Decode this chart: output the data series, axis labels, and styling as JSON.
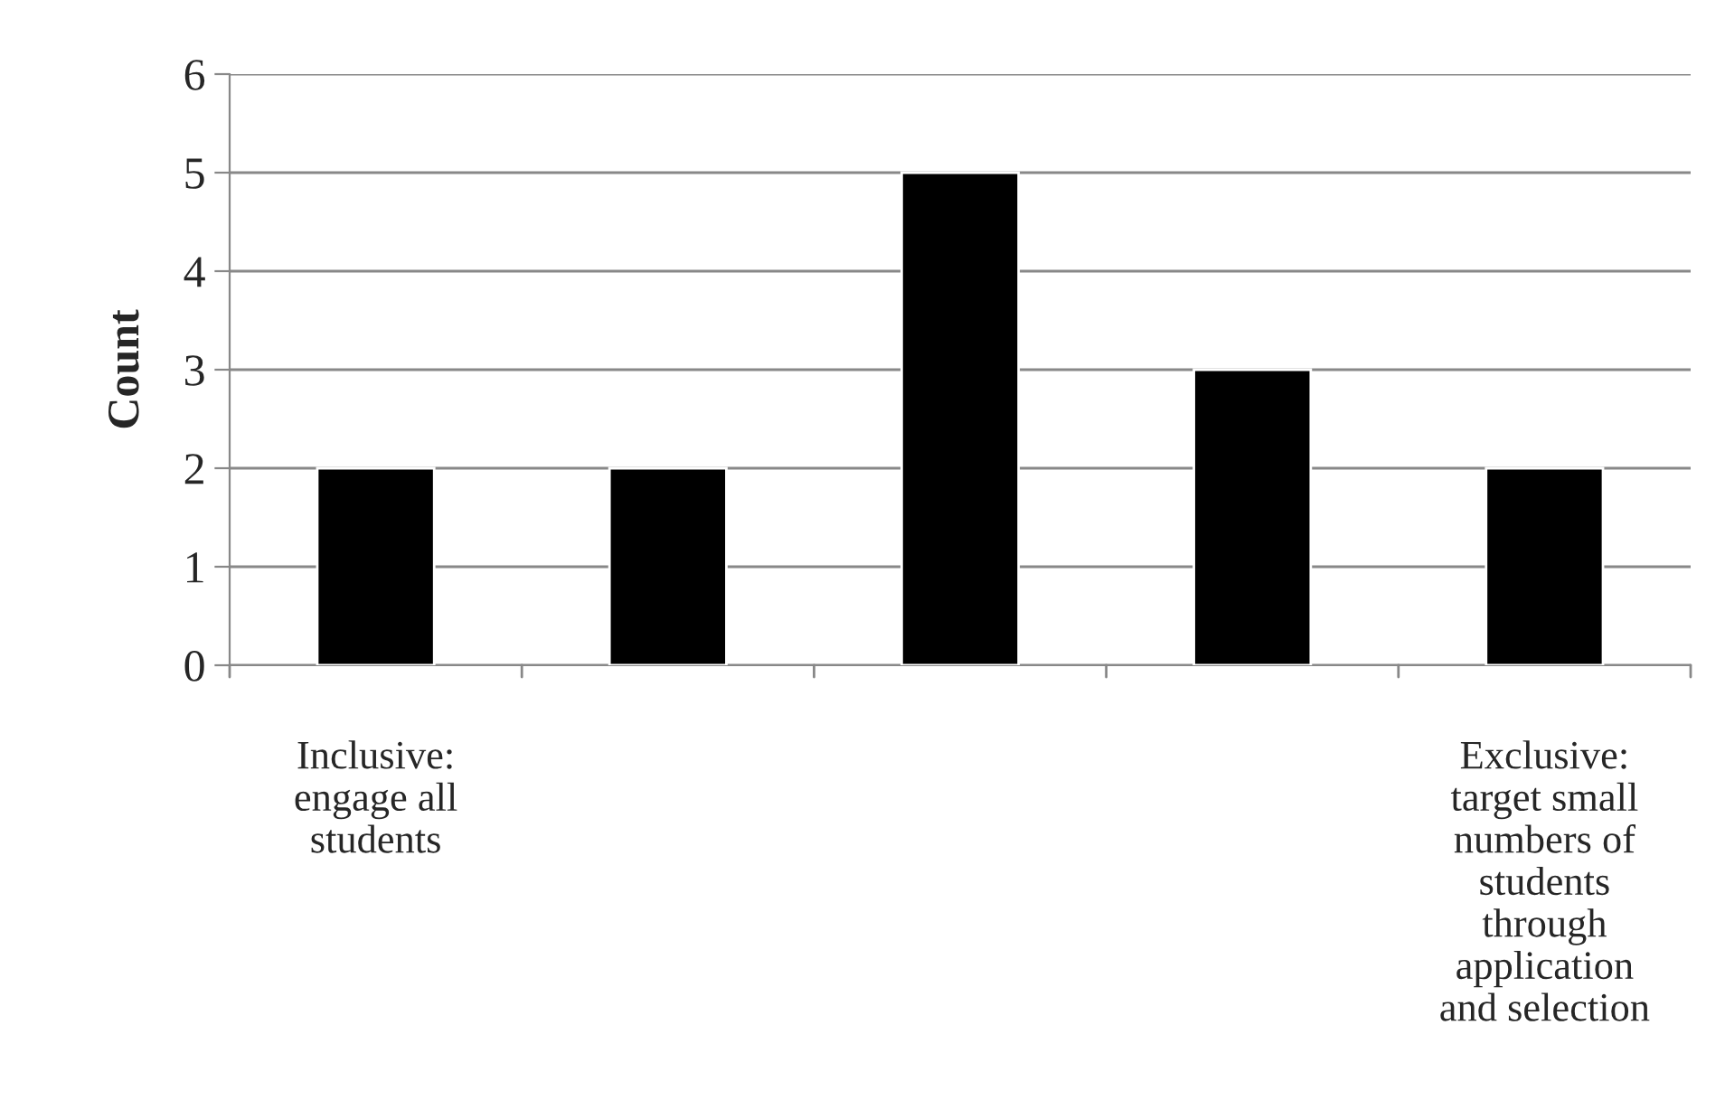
{
  "chart_data": {
    "type": "bar",
    "ylabel": "Count",
    "categories": [
      "Inclusive:\nengage all\nstudents",
      null,
      null,
      null,
      "Exclusive:\ntarget small\nnumbers of\nstudents\nthrough\napplication\nand selection"
    ],
    "values": [
      2,
      2,
      5,
      3,
      2
    ],
    "color": "#000000",
    "ylim": [
      0,
      6
    ],
    "yticks": [
      0,
      1,
      2,
      3,
      4,
      5,
      6
    ],
    "grid": "y",
    "legend": false
  }
}
